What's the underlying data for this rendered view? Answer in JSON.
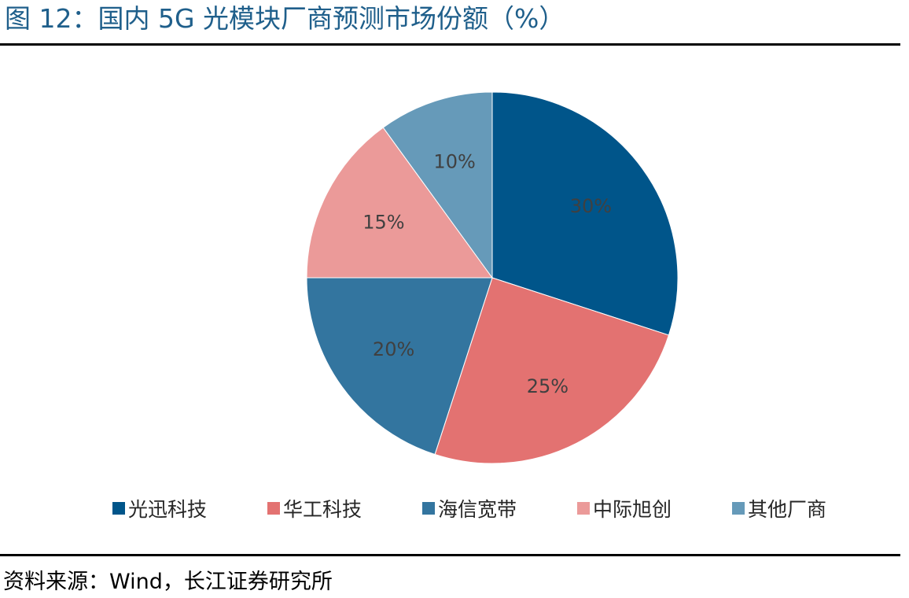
{
  "figure": {
    "title": "图 12：国内 5G 光模块厂商预测市场份额（%）",
    "source": "资料来源：Wind，长江证券研究所"
  },
  "chart_data": {
    "type": "pie",
    "title": "图 12：国内 5G 光模块厂商预测市场份额（%）",
    "legend_position": "bottom",
    "slices": [
      {
        "name": "光迅科技",
        "value": 30,
        "label": "30%",
        "color": "#00558a"
      },
      {
        "name": "华工科技",
        "value": 25,
        "label": "25%",
        "color": "#e37271"
      },
      {
        "name": "海信宽带",
        "value": 20,
        "label": "20%",
        "color": "#33759f"
      },
      {
        "name": "中际旭创",
        "value": 15,
        "label": "15%",
        "color": "#eb9a99"
      },
      {
        "name": "其他厂商",
        "value": 10,
        "label": "10%",
        "color": "#669ab9"
      }
    ]
  }
}
